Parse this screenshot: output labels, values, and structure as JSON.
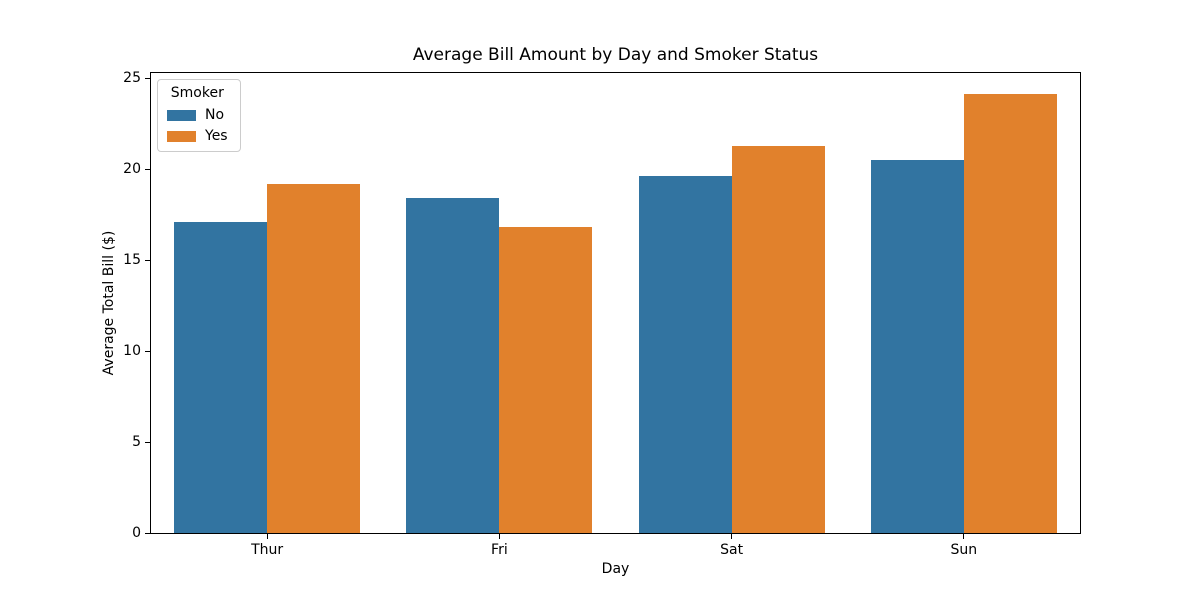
{
  "chart_data": {
    "type": "bar",
    "title": "Average Bill Amount by Day and Smoker Status",
    "xlabel": "Day",
    "ylabel": "Average Total Bill ($)",
    "categories": [
      "Thur",
      "Fri",
      "Sat",
      "Sun"
    ],
    "series": [
      {
        "name": "No",
        "color": "#3274A1",
        "values": [
          17.11,
          18.42,
          19.66,
          20.51
        ]
      },
      {
        "name": "Yes",
        "color": "#E1812C",
        "values": [
          19.19,
          16.81,
          21.28,
          24.12
        ]
      }
    ],
    "ylim": [
      0,
      25.3
    ],
    "yticks": [
      0,
      5,
      10,
      15,
      20,
      25
    ],
    "grid": false,
    "legend_title": "Smoker",
    "legend_position": "upper left",
    "bar_group_width": 0.8,
    "background": "#ffffff"
  }
}
